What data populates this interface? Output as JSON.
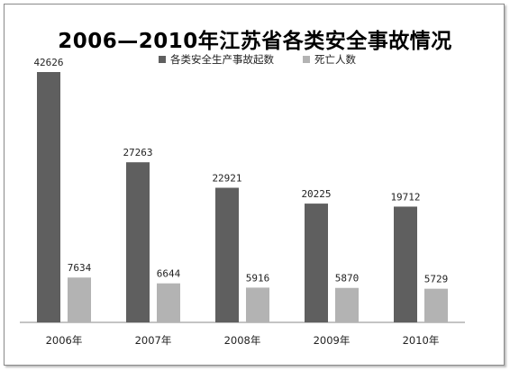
{
  "chart_data": {
    "type": "bar",
    "title": "2006—2010年江苏省各类安全事故情况",
    "categories": [
      "2006年",
      "2007年",
      "2008年",
      "2009年",
      "2010年"
    ],
    "series": [
      {
        "name": "各类安全生产事故起数",
        "values": [
          42626,
          27263,
          22921,
          20225,
          19712
        ],
        "color": "#5f5f5f"
      },
      {
        "name": "死亡人数",
        "values": [
          7634,
          6644,
          5916,
          5870,
          5729
        ],
        "color": "#b3b3b3"
      }
    ],
    "legend_position": "top-center",
    "grid": false
  }
}
